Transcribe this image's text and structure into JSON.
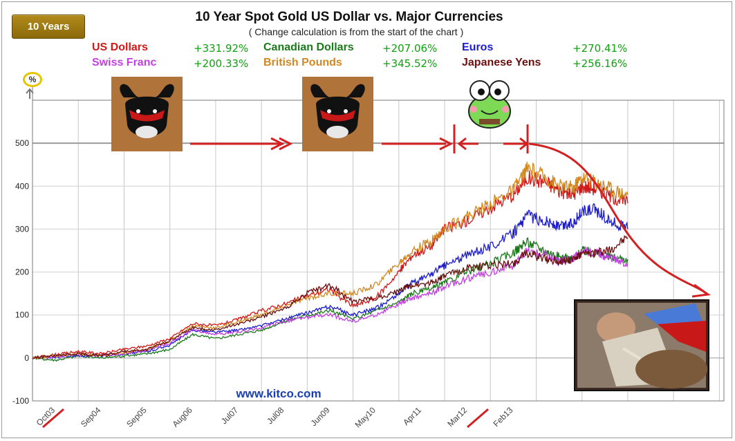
{
  "range_button": "10 Years",
  "percent_badge": "%",
  "legend": [
    {
      "name": "US Dollars",
      "change": "+331.92%",
      "color": "#d01818"
    },
    {
      "name": "Canadian Dollars",
      "change": "+207.06%",
      "color": "#1a7a1a"
    },
    {
      "name": "Euros",
      "change": "+270.41%",
      "color": "#1c1ccc"
    },
    {
      "name": "Swiss Franc",
      "change": "+200.33%",
      "color": "#c040e0"
    },
    {
      "name": "British Pounds",
      "change": "+345.52%",
      "color": "#d08820"
    },
    {
      "name": "Japanese Yens",
      "change": "+256.16%",
      "color": "#6a1010"
    }
  ],
  "change_color": "#10a010",
  "icons": [
    "bull-head-icon",
    "bull-head-icon",
    "frog-cartoon-icon",
    "bullfighter-gored-photo"
  ],
  "chart_data": {
    "type": "line",
    "title": "10 Year  Spot Gold US Dollar vs. Major Currencies",
    "subtitle": "( Change calculation is from the start of the chart )",
    "watermark": "www.kitco.com",
    "ylim": [
      -100,
      600
    ],
    "yticks": [
      -100,
      0,
      100,
      200,
      300,
      400,
      500
    ],
    "grid": true,
    "x_labels": [
      "Oct03",
      "Sep04",
      "Sep05",
      "Aug06",
      "Jul07",
      "Jul08",
      "Jun09",
      "May10",
      "Apr11",
      "Mar12",
      "Feb13"
    ],
    "x_domain": [
      0,
      15.1
    ],
    "series": [
      {
        "name": "US Dollars",
        "color": "#d01818",
        "x": [
          0,
          0.5,
          1,
          1.5,
          2,
          2.5,
          3,
          3.5,
          4,
          4.5,
          5,
          5.5,
          6,
          6.5,
          7,
          7.5,
          8,
          8.3,
          8.7,
          9,
          9.5,
          10,
          10.5,
          10.8,
          11.2,
          11.5,
          11.8,
          12,
          12.3,
          12.6,
          13
        ],
        "y": [
          0,
          8,
          15,
          10,
          20,
          28,
          45,
          80,
          75,
          90,
          110,
          125,
          145,
          160,
          120,
          140,
          200,
          240,
          260,
          300,
          320,
          350,
          380,
          420,
          410,
          390,
          380,
          400,
          395,
          380,
          360
        ]
      },
      {
        "name": "Canadian Dollars",
        "color": "#1a7a1a",
        "x": [
          0,
          0.5,
          1,
          1.5,
          2,
          2.5,
          3,
          3.5,
          4,
          4.5,
          5,
          5.5,
          6,
          6.5,
          7,
          7.5,
          8,
          8.3,
          8.7,
          9,
          9.5,
          10,
          10.5,
          10.8,
          11.2,
          11.5,
          11.8,
          12,
          12.3,
          12.6,
          13
        ],
        "y": [
          0,
          -5,
          5,
          0,
          5,
          10,
          20,
          55,
          45,
          55,
          65,
          85,
          100,
          110,
          90,
          110,
          130,
          150,
          160,
          175,
          200,
          220,
          245,
          270,
          250,
          235,
          230,
          250,
          245,
          235,
          230
        ]
      },
      {
        "name": "Euros",
        "color": "#1c1ccc",
        "x": [
          0,
          0.5,
          1,
          1.5,
          2,
          2.5,
          3,
          3.5,
          4,
          4.5,
          5,
          5.5,
          6,
          6.5,
          7,
          7.5,
          8,
          8.3,
          8.7,
          9,
          9.5,
          10,
          10.5,
          10.8,
          11.2,
          11.5,
          11.8,
          12,
          12.3,
          12.6,
          13
        ],
        "y": [
          0,
          2,
          5,
          5,
          10,
          15,
          30,
          65,
          60,
          65,
          75,
          90,
          105,
          120,
          100,
          115,
          150,
          175,
          195,
          215,
          240,
          260,
          290,
          330,
          320,
          305,
          315,
          340,
          345,
          320,
          300
        ]
      },
      {
        "name": "Swiss Franc",
        "color": "#c040e0",
        "x": [
          0,
          0.5,
          1,
          1.5,
          2,
          2.5,
          3,
          3.5,
          4,
          4.5,
          5,
          5.5,
          6,
          6.5,
          7,
          7.5,
          8,
          8.3,
          8.7,
          9,
          9.5,
          10,
          10.5,
          10.8,
          11.2,
          11.5,
          11.8,
          12,
          12.3,
          12.6,
          13
        ],
        "y": [
          0,
          3,
          8,
          5,
          10,
          18,
          35,
          65,
          55,
          60,
          70,
          85,
          95,
          100,
          85,
          100,
          125,
          140,
          150,
          165,
          185,
          200,
          215,
          250,
          240,
          225,
          230,
          250,
          245,
          235,
          220
        ]
      },
      {
        "name": "British Pounds",
        "color": "#d08820",
        "x": [
          0,
          0.5,
          1,
          1.5,
          2,
          2.5,
          3,
          3.5,
          4,
          4.5,
          5,
          5.5,
          6,
          6.5,
          7,
          7.5,
          8,
          8.3,
          8.7,
          9,
          9.5,
          10,
          10.5,
          10.8,
          11.2,
          11.5,
          11.8,
          12,
          12.3,
          12.6,
          13
        ],
        "y": [
          0,
          5,
          10,
          5,
          12,
          20,
          40,
          75,
          70,
          85,
          100,
          120,
          140,
          150,
          150,
          170,
          220,
          250,
          270,
          300,
          330,
          360,
          390,
          440,
          420,
          400,
          395,
          420,
          410,
          395,
          380
        ]
      },
      {
        "name": "Japanese Yens",
        "color": "#6a1010",
        "x": [
          0,
          0.5,
          1,
          1.5,
          2,
          2.5,
          3,
          3.5,
          4,
          4.5,
          5,
          5.5,
          6,
          6.5,
          7,
          7.5,
          8,
          8.3,
          8.7,
          9,
          9.5,
          10,
          10.5,
          10.8,
          11.2,
          11.5,
          11.8,
          12,
          12.3,
          12.6,
          13
        ],
        "y": [
          0,
          5,
          10,
          5,
          15,
          20,
          40,
          70,
          65,
          80,
          95,
          115,
          150,
          170,
          130,
          140,
          155,
          170,
          175,
          190,
          210,
          215,
          220,
          245,
          230,
          225,
          230,
          240,
          245,
          250,
          280
        ]
      }
    ]
  }
}
